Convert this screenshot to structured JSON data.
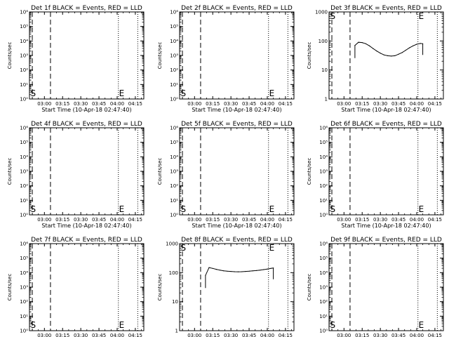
{
  "page": {
    "shared": {
      "ylabel": "Counts/sec",
      "xlabel": "Start Time (10-Apr-18 02:47:40)",
      "xticks": [
        "03:00",
        "03:15",
        "03:30",
        "03:45",
        "04:00",
        "04:15"
      ],
      "xrange": [
        "02:47:40",
        "04:22:00"
      ],
      "markers": {
        "dashed": [
          "02:50:00",
          "03:05:00"
        ],
        "dotted": [
          "04:01:00",
          "04:17:00"
        ],
        "labels": [
          {
            "text": "S",
            "time": "02:48:30"
          },
          {
            "text": "E",
            "time": "04:01:30"
          }
        ]
      },
      "series_colors": {
        "events": "#000000",
        "lld": "#ff0000"
      }
    }
  },
  "chart_data": [
    {
      "type": "line",
      "title": "Det 1f BLACK = Events, RED = LLD",
      "ylog": true,
      "ylim": [
        1,
        1000000
      ],
      "yticks": [
        "10⁰",
        "10¹",
        "10²",
        "10³",
        "10⁴",
        "10⁵",
        "10⁶"
      ],
      "x": [],
      "series": []
    },
    {
      "type": "line",
      "title": "Det 2f BLACK = Events, RED = LLD",
      "ylog": true,
      "ylim": [
        1,
        1000000
      ],
      "yticks": [
        "10⁰",
        "10¹",
        "10²",
        "10³",
        "10⁴",
        "10⁵",
        "10⁶"
      ],
      "x": [],
      "series": []
    },
    {
      "type": "line",
      "title": "Det 3f BLACK = Events, RED = LLD",
      "ylog": true,
      "ylim": [
        1,
        1000
      ],
      "yticks": [
        "1",
        "10",
        "100",
        "1000"
      ],
      "x": [
        "03:09:00",
        "03:12:00",
        "03:15:00",
        "03:18:00",
        "03:21:00",
        "03:24:00",
        "03:27:00",
        "03:30:00",
        "03:33:00",
        "03:36:00",
        "03:39:00",
        "03:42:00",
        "03:45:00",
        "03:48:00",
        "03:51:00",
        "03:54:00",
        "03:57:00",
        "04:00:00",
        "04:03:00",
        "04:05:00"
      ],
      "series": [
        {
          "values": [
            70,
            90,
            88,
            80,
            68,
            55,
            45,
            38,
            33,
            31,
            30,
            31,
            35,
            40,
            48,
            58,
            68,
            77,
            82,
            80
          ]
        }
      ]
    },
    {
      "type": "line",
      "title": "Det 4f BLACK = Events, RED = LLD",
      "ylog": true,
      "ylim": [
        1,
        1000000
      ],
      "yticks": [
        "10⁰",
        "10¹",
        "10²",
        "10³",
        "10⁴",
        "10⁵",
        "10⁶"
      ],
      "x": [],
      "series": []
    },
    {
      "type": "line",
      "title": "Det 5f BLACK = Events, RED = LLD",
      "ylog": true,
      "ylim": [
        1,
        1000000
      ],
      "yticks": [
        "10⁰",
        "10¹",
        "10²",
        "10³",
        "10⁴",
        "10⁵",
        "10⁶"
      ],
      "x": [],
      "series": []
    },
    {
      "type": "line",
      "title": "Det 6f BLACK = Events, RED = LLD",
      "ylog": true,
      "ylim": [
        1,
        1000000
      ],
      "yticks": [
        "10⁰",
        "10¹",
        "10²",
        "10³",
        "10⁴",
        "10⁵",
        "10⁶"
      ],
      "x": [],
      "series": []
    },
    {
      "type": "line",
      "title": "Det 7f BLACK = Events, RED = LLD",
      "ylog": true,
      "ylim": [
        1,
        1000000
      ],
      "yticks": [
        "10⁰",
        "10¹",
        "10²",
        "10³",
        "10⁴",
        "10⁵",
        "10⁶"
      ],
      "x": [],
      "series": []
    },
    {
      "type": "line",
      "title": "Det 8f BLACK = Events, RED = LLD",
      "ylog": true,
      "ylim": [
        1,
        1000
      ],
      "yticks": [
        "1",
        "10",
        "100",
        "1000"
      ],
      "x": [
        "03:09:00",
        "03:12:00",
        "03:15:00",
        "03:18:00",
        "03:21:00",
        "03:24:00",
        "03:27:00",
        "03:30:00",
        "03:33:00",
        "03:36:00",
        "03:39:00",
        "03:42:00",
        "03:45:00",
        "03:48:00",
        "03:51:00",
        "03:54:00",
        "03:57:00",
        "04:00:00",
        "04:03:00",
        "04:05:00"
      ],
      "series": [
        {
          "values": [
            80,
            150,
            140,
            130,
            122,
            116,
            112,
            110,
            108,
            107,
            108,
            110,
            112,
            115,
            118,
            122,
            127,
            133,
            140,
            145
          ]
        }
      ]
    },
    {
      "type": "line",
      "title": "Det 9f BLACK = Events, RED = LLD",
      "ylog": true,
      "ylim": [
        1,
        1000000
      ],
      "yticks": [
        "10⁰",
        "10¹",
        "10²",
        "10³",
        "10⁴",
        "10⁵",
        "10⁶"
      ],
      "x": [],
      "series": []
    }
  ]
}
